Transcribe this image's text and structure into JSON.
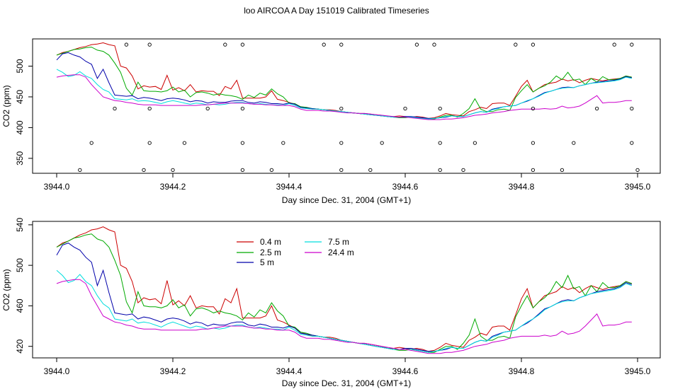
{
  "title": "loo AIRCOA A  Day 151019  Calibrated Timeseries",
  "chart_data": [
    {
      "type": "line",
      "xlabel": "Day since Dec. 31, 2004 (GMT+1)",
      "ylabel": "CO2 (ppm)",
      "xlim": [
        3944.0,
        3945.0
      ],
      "ylim": [
        328,
        542
      ],
      "x_ticks": [
        "3944.0",
        "3944.2",
        "3944.4",
        "3944.6",
        "3944.8",
        "3945.0"
      ],
      "y_ticks": [
        "350",
        "400",
        "450",
        "500"
      ],
      "markers": {
        "description_shown": false,
        "points": [
          [
            3944.12,
            535
          ],
          [
            3944.16,
            535
          ],
          [
            3944.29,
            535
          ],
          [
            3944.32,
            535
          ],
          [
            3944.46,
            535
          ],
          [
            3944.49,
            535
          ],
          [
            3944.62,
            535
          ],
          [
            3944.65,
            535
          ],
          [
            3944.79,
            535
          ],
          [
            3944.82,
            535
          ],
          [
            3944.96,
            535
          ],
          [
            3944.99,
            535
          ],
          [
            3944.1,
            431
          ],
          [
            3944.16,
            431
          ],
          [
            3944.26,
            431
          ],
          [
            3944.32,
            431
          ],
          [
            3944.49,
            431
          ],
          [
            3944.6,
            431
          ],
          [
            3944.66,
            431
          ],
          [
            3944.82,
            431
          ],
          [
            3944.93,
            431
          ],
          [
            3944.99,
            431
          ],
          [
            3944.06,
            375
          ],
          [
            3944.16,
            375
          ],
          [
            3944.22,
            375
          ],
          [
            3944.32,
            375
          ],
          [
            3944.39,
            375
          ],
          [
            3944.49,
            375
          ],
          [
            3944.56,
            375
          ],
          [
            3944.66,
            375
          ],
          [
            3944.72,
            375
          ],
          [
            3944.82,
            375
          ],
          [
            3944.89,
            375
          ],
          [
            3944.99,
            375
          ],
          [
            3944.04,
            331
          ],
          [
            3944.15,
            331
          ],
          [
            3944.2,
            331
          ],
          [
            3944.32,
            331
          ],
          [
            3944.37,
            331
          ],
          [
            3944.49,
            331
          ],
          [
            3944.54,
            331
          ],
          [
            3944.66,
            331
          ],
          [
            3944.7,
            331
          ],
          [
            3944.82,
            331
          ],
          [
            3944.87,
            331
          ],
          [
            3945.0,
            331
          ]
        ]
      }
    },
    {
      "type": "line",
      "xlabel": "Day since Dec. 31, 2004 (GMT+1)",
      "ylabel": "CO2 (ppm)",
      "xlim": [
        3944.0,
        3945.0
      ],
      "ylim": [
        410,
        542
      ],
      "x_ticks": [
        "3944.0",
        "3944.2",
        "3944.4",
        "3944.6",
        "3944.8",
        "3945.0"
      ],
      "y_ticks": [
        "420",
        "460",
        "500",
        "540"
      ],
      "legend": {
        "placement": "top-left",
        "entries": [
          {
            "label": "0.4 m",
            "color": "#cc0000"
          },
          {
            "label": "2.5 m",
            "color": "#00aa00"
          },
          {
            "label": "5 m",
            "color": "#0000aa"
          },
          {
            "label": "7.5 m",
            "color": "#00dddd"
          },
          {
            "label": "24.4 m",
            "color": "#cc00cc"
          }
        ]
      }
    }
  ],
  "series_data": {
    "x": [
      3944.0,
      3944.01,
      3944.02,
      3944.03,
      3944.04,
      3944.05,
      3944.06,
      3944.07,
      3944.08,
      3944.09,
      3944.1,
      3944.11,
      3944.12,
      3944.13,
      3944.14,
      3944.15,
      3944.16,
      3944.17,
      3944.18,
      3944.19,
      3944.2,
      3944.21,
      3944.22,
      3944.23,
      3944.24,
      3944.25,
      3944.26,
      3944.27,
      3944.28,
      3944.29,
      3944.3,
      3944.31,
      3944.32,
      3944.33,
      3944.34,
      3944.35,
      3944.36,
      3944.37,
      3944.38,
      3944.39,
      3944.4,
      3944.41,
      3944.42,
      3944.43,
      3944.44,
      3944.45,
      3944.46,
      3944.47,
      3944.48,
      3944.49,
      3944.5,
      3944.51,
      3944.52,
      3944.53,
      3944.54,
      3944.55,
      3944.56,
      3944.57,
      3944.58,
      3944.59,
      3944.6,
      3944.61,
      3944.62,
      3944.63,
      3944.64,
      3944.65,
      3944.66,
      3944.67,
      3944.68,
      3944.69,
      3944.7,
      3944.71,
      3944.72,
      3944.73,
      3944.74,
      3944.75,
      3944.76,
      3944.77,
      3944.78,
      3944.79,
      3944.8,
      3944.81,
      3944.82,
      3944.83,
      3944.84,
      3944.85,
      3944.86,
      3944.87,
      3944.88,
      3944.89,
      3944.9,
      3944.91,
      3944.92,
      3944.93,
      3944.94,
      3944.95,
      3944.96,
      3944.97,
      3944.98,
      3944.99
    ],
    "series": [
      {
        "color": "#cc0000",
        "values": [
          518,
          522,
          524,
          527,
          530,
          532,
          535,
          536,
          538,
          535,
          533,
          500,
          497,
          484,
          463,
          468,
          466,
          467,
          462,
          485,
          461,
          465,
          460,
          470,
          458,
          460,
          459,
          459,
          452,
          467,
          463,
          477,
          448,
          448,
          448,
          448,
          450,
          460,
          446,
          444,
          441,
          438,
          434,
          432,
          430,
          430,
          429,
          429,
          428,
          426,
          425,
          424,
          423,
          423,
          422,
          421,
          420,
          418,
          418,
          419,
          418,
          417,
          418,
          417,
          415,
          416,
          419,
          423,
          421,
          420,
          419,
          426,
          429,
          433,
          431,
          439,
          440,
          440,
          436,
          451,
          467,
          477,
          458,
          464,
          470,
          472,
          474,
          479,
          476,
          478,
          473,
          477,
          480,
          478,
          476,
          478,
          479,
          480,
          484,
          482
        ]
      },
      {
        "color": "#00aa00",
        "values": [
          518,
          521,
          524,
          527,
          528,
          530,
          531,
          526,
          524,
          518,
          505,
          490,
          464,
          453,
          474,
          460,
          459,
          459,
          458,
          460,
          466,
          458,
          461,
          450,
          457,
          458,
          456,
          453,
          455,
          453,
          452,
          450,
          446,
          453,
          449,
          456,
          453,
          463,
          455,
          450,
          440,
          439,
          434,
          433,
          431,
          430,
          429,
          428,
          427,
          426,
          425,
          424,
          423,
          422,
          421,
          420,
          419,
          418,
          417,
          416,
          416,
          417,
          416,
          415,
          414,
          414,
          417,
          420,
          420,
          417,
          423,
          431,
          447,
          430,
          426,
          426,
          429,
          430,
          428,
          449,
          460,
          470,
          458,
          464,
          468,
          474,
          484,
          478,
          490,
          477,
          479,
          470,
          480,
          474,
          483,
          478,
          478,
          480,
          484,
          482
        ]
      },
      {
        "color": "#0000aa",
        "values": [
          510,
          520,
          522,
          518,
          515,
          508,
          503,
          480,
          495,
          473,
          453,
          452,
          451,
          452,
          447,
          449,
          448,
          446,
          444,
          447,
          448,
          447,
          445,
          442,
          444,
          443,
          440,
          442,
          441,
          441,
          443,
          444,
          444,
          441,
          440,
          442,
          441,
          439,
          439,
          438,
          440,
          438,
          433,
          432,
          431,
          430,
          429,
          428,
          427,
          426,
          425,
          424,
          423,
          422,
          421,
          420,
          419,
          418,
          417,
          417,
          418,
          418,
          417,
          416,
          415,
          415,
          416,
          417,
          419,
          418,
          418,
          421,
          424,
          426,
          425,
          430,
          432,
          434,
          435,
          436,
          440,
          443,
          447,
          452,
          457,
          459,
          462,
          465,
          466,
          465,
          468,
          470,
          472,
          474,
          475,
          476,
          477,
          479,
          483,
          481
        ]
      },
      {
        "color": "#00dddd",
        "values": [
          495,
          490,
          483,
          485,
          491,
          484,
          480,
          470,
          462,
          458,
          447,
          446,
          445,
          447,
          443,
          444,
          443,
          441,
          439,
          442,
          444,
          442,
          440,
          438,
          440,
          439,
          437,
          438,
          437,
          438,
          440,
          441,
          441,
          439,
          438,
          439,
          438,
          437,
          437,
          436,
          439,
          436,
          432,
          431,
          430,
          430,
          429,
          428,
          427,
          426,
          425,
          424,
          423,
          422,
          421,
          420,
          419,
          418,
          417,
          417,
          417,
          417,
          416,
          415,
          414,
          415,
          416,
          418,
          419,
          418,
          418,
          421,
          424,
          426,
          425,
          429,
          431,
          434,
          435,
          436,
          440,
          444,
          447,
          451,
          456,
          459,
          462,
          464,
          465,
          465,
          468,
          470,
          472,
          473,
          474,
          475,
          476,
          478,
          482,
          480
        ]
      },
      {
        "color": "#cc00cc",
        "values": [
          482,
          484,
          485,
          486,
          486,
          482,
          470,
          460,
          450,
          447,
          444,
          443,
          441,
          440,
          438,
          437,
          437,
          437,
          436,
          436,
          436,
          436,
          436,
          436,
          436,
          437,
          437,
          438,
          439,
          440,
          440,
          440,
          440,
          439,
          438,
          438,
          437,
          437,
          436,
          436,
          436,
          434,
          430,
          428,
          428,
          428,
          427,
          427,
          426,
          425,
          424,
          424,
          423,
          423,
          422,
          421,
          420,
          419,
          418,
          417,
          417,
          416,
          415,
          414,
          413,
          413,
          413,
          414,
          414,
          415,
          416,
          418,
          420,
          421,
          422,
          424,
          425,
          426,
          428,
          429,
          430,
          430,
          430,
          430,
          431,
          430,
          431,
          435,
          432,
          433,
          435,
          440,
          446,
          452,
          440,
          441,
          441,
          442,
          444,
          444
        ]
      }
    ]
  }
}
